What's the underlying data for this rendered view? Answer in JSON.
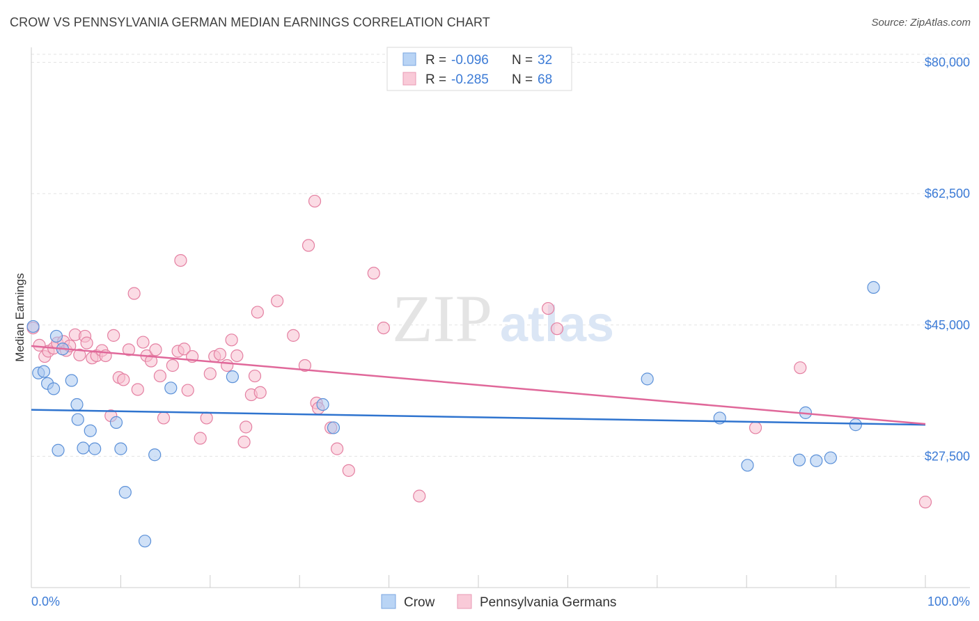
{
  "header": {
    "title": "CROW VS PENNSYLVANIA GERMAN MEDIAN EARNINGS CORRELATION CHART",
    "source": "Source: ZipAtlas.com"
  },
  "watermark": {
    "zip": "ZIP",
    "atlas": "atlas"
  },
  "stats_legend": {
    "crow": {
      "r_label": "R =",
      "r_value": "-0.096",
      "n_label": "N =",
      "n_value": "32"
    },
    "penn": {
      "r_label": "R =",
      "r_value": "-0.285",
      "n_label": "N =",
      "n_value": "68"
    }
  },
  "colors": {
    "crow_fill": "#a9c8f0",
    "crow_stroke": "#5b90d8",
    "crow_line": "#2f74cf",
    "penn_fill": "#f7bfd0",
    "penn_stroke": "#e47fa1",
    "penn_line": "#e0689a",
    "value_text": "#3c7bd6",
    "grid": "#e3e3e3"
  },
  "chart_data": {
    "type": "scatter",
    "title": "CROW VS PENNSYLVANIA GERMAN MEDIAN EARNINGS CORRELATION CHART",
    "xlabel": "",
    "ylabel": "Median Earnings",
    "xlim": [
      0,
      100
    ],
    "ylim": [
      10000,
      82000
    ],
    "x_tick_labels": [
      "0.0%",
      "100.0%"
    ],
    "y_ticks": [
      27500,
      45000,
      62500,
      80000
    ],
    "y_tick_labels": [
      "$27,500",
      "$45,000",
      "$62,500",
      "$80,000"
    ],
    "legend": [
      "Crow",
      "Pennsylvania Germans"
    ],
    "series": [
      {
        "name": "Crow",
        "points": [
          [
            0.2,
            44800
          ],
          [
            0.8,
            38600
          ],
          [
            1.4,
            38800
          ],
          [
            1.8,
            37200
          ],
          [
            2.5,
            36500
          ],
          [
            2.8,
            43500
          ],
          [
            3.0,
            28300
          ],
          [
            3.5,
            41800
          ],
          [
            4.5,
            37600
          ],
          [
            5.1,
            34400
          ],
          [
            5.2,
            32400
          ],
          [
            5.8,
            28600
          ],
          [
            6.6,
            30900
          ],
          [
            7.1,
            28500
          ],
          [
            9.5,
            32000
          ],
          [
            10.0,
            28500
          ],
          [
            10.5,
            22700
          ],
          [
            12.7,
            16200
          ],
          [
            13.8,
            27700
          ],
          [
            15.6,
            36600
          ],
          [
            22.5,
            38100
          ],
          [
            32.6,
            34400
          ],
          [
            33.8,
            31300
          ],
          [
            68.9,
            37800
          ],
          [
            77.0,
            32600
          ],
          [
            80.1,
            26300
          ],
          [
            85.9,
            27000
          ],
          [
            86.6,
            33300
          ],
          [
            87.8,
            26900
          ],
          [
            89.4,
            27300
          ],
          [
            92.2,
            31700
          ],
          [
            94.2,
            50000
          ]
        ]
      },
      {
        "name": "Pennsylvania Germans",
        "points": [
          [
            0.2,
            44600
          ],
          [
            0.9,
            42300
          ],
          [
            1.5,
            40800
          ],
          [
            1.9,
            41500
          ],
          [
            2.5,
            41900
          ],
          [
            2.9,
            42600
          ],
          [
            3.6,
            42800
          ],
          [
            3.9,
            41600
          ],
          [
            4.3,
            42200
          ],
          [
            4.9,
            43700
          ],
          [
            5.4,
            41000
          ],
          [
            6.0,
            43500
          ],
          [
            6.2,
            42600
          ],
          [
            6.8,
            40600
          ],
          [
            7.3,
            40900
          ],
          [
            7.9,
            41600
          ],
          [
            8.3,
            40900
          ],
          [
            8.9,
            32900
          ],
          [
            9.2,
            43600
          ],
          [
            9.8,
            38000
          ],
          [
            10.3,
            37700
          ],
          [
            10.9,
            41700
          ],
          [
            11.5,
            49200
          ],
          [
            11.9,
            36400
          ],
          [
            12.5,
            42700
          ],
          [
            12.9,
            40900
          ],
          [
            13.4,
            40200
          ],
          [
            13.9,
            41700
          ],
          [
            14.4,
            38200
          ],
          [
            14.8,
            32600
          ],
          [
            15.8,
            39600
          ],
          [
            16.4,
            41500
          ],
          [
            16.7,
            53600
          ],
          [
            17.1,
            41800
          ],
          [
            17.5,
            36300
          ],
          [
            18.0,
            40800
          ],
          [
            18.9,
            29900
          ],
          [
            19.6,
            32600
          ],
          [
            20.0,
            38500
          ],
          [
            20.5,
            40800
          ],
          [
            21.1,
            41100
          ],
          [
            21.9,
            39600
          ],
          [
            22.4,
            43000
          ],
          [
            23.0,
            40900
          ],
          [
            23.8,
            29400
          ],
          [
            24.0,
            31400
          ],
          [
            24.6,
            35700
          ],
          [
            25.0,
            38200
          ],
          [
            25.3,
            46700
          ],
          [
            25.6,
            36000
          ],
          [
            27.5,
            48200
          ],
          [
            29.3,
            43600
          ],
          [
            30.6,
            39600
          ],
          [
            31.7,
            61500
          ],
          [
            31.9,
            34600
          ],
          [
            32.1,
            33900
          ],
          [
            31.0,
            55600
          ],
          [
            33.5,
            31300
          ],
          [
            34.2,
            28500
          ],
          [
            35.5,
            25600
          ],
          [
            38.3,
            51900
          ],
          [
            39.4,
            44600
          ],
          [
            43.4,
            22200
          ],
          [
            57.8,
            47200
          ],
          [
            58.8,
            44500
          ],
          [
            81.0,
            31300
          ],
          [
            86.0,
            39300
          ],
          [
            100.0,
            21400
          ]
        ]
      }
    ],
    "trend_lines": [
      {
        "name": "Crow",
        "x": [
          0,
          100
        ],
        "y": [
          33700,
          31700
        ]
      },
      {
        "name": "Pennsylvania Germans",
        "x": [
          0,
          100
        ],
        "y": [
          42200,
          31800
        ]
      }
    ]
  },
  "bottom_legend": {
    "crow_label": "Crow",
    "penn_label": "Pennsylvania Germans"
  }
}
